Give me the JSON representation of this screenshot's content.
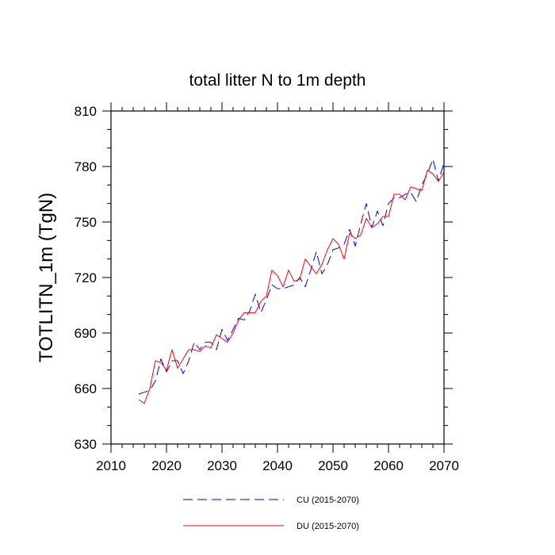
{
  "chart_data": {
    "type": "line",
    "title": "total litter N to 1m depth",
    "xlabel": "",
    "ylabel": "TOTLITN_1m  (TgN)",
    "xlim": [
      2010,
      2070
    ],
    "ylim": [
      630,
      810
    ],
    "xticks": [
      2010,
      2020,
      2030,
      2040,
      2050,
      2060,
      2070
    ],
    "yticks": [
      630,
      660,
      690,
      720,
      750,
      780,
      810
    ],
    "x": [
      2015,
      2016,
      2017,
      2018,
      2019,
      2020,
      2021,
      2022,
      2023,
      2024,
      2025,
      2026,
      2027,
      2028,
      2029,
      2030,
      2031,
      2032,
      2033,
      2034,
      2035,
      2036,
      2037,
      2038,
      2039,
      2040,
      2041,
      2042,
      2043,
      2044,
      2045,
      2046,
      2047,
      2048,
      2049,
      2050,
      2051,
      2052,
      2053,
      2054,
      2055,
      2056,
      2057,
      2058,
      2059,
      2060,
      2061,
      2062,
      2063,
      2064,
      2065,
      2066,
      2067,
      2068,
      2069,
      2070
    ],
    "series": [
      {
        "name": "CU (2015-2070)",
        "color": "#0000ff",
        "dash": "dashed",
        "values": [
          657,
          658,
          659,
          664,
          676,
          669,
          675,
          675,
          668,
          675,
          685,
          681,
          685,
          685,
          681,
          692,
          686,
          692,
          698,
          697,
          702,
          711,
          701,
          708,
          716,
          714,
          714,
          715,
          716,
          720,
          715,
          724,
          734,
          722,
          727,
          735,
          736,
          738,
          746,
          737,
          749,
          760,
          747,
          756,
          748,
          760,
          763,
          763,
          765,
          766,
          761,
          770,
          776,
          784,
          772,
          782
        ]
      },
      {
        "name": "DU (2015-2070)",
        "color": "#ff0000",
        "dash": "solid",
        "values": [
          654,
          652,
          660,
          675,
          674,
          670,
          681,
          671,
          676,
          681,
          681,
          680,
          683,
          682,
          689,
          687,
          685,
          690,
          697,
          701,
          701,
          701,
          707,
          710,
          724,
          721,
          715,
          724,
          718,
          719,
          730,
          726,
          722,
          727,
          735,
          741,
          738,
          730,
          744,
          741,
          743,
          752,
          747,
          749,
          753,
          753,
          765,
          765,
          762,
          769,
          768,
          767,
          778,
          776,
          772,
          777
        ]
      }
    ],
    "legend": {
      "placement": "bottom-center",
      "entries": [
        "CU (2015-2070)",
        "DU (2015-2070)"
      ]
    },
    "grid": false
  }
}
